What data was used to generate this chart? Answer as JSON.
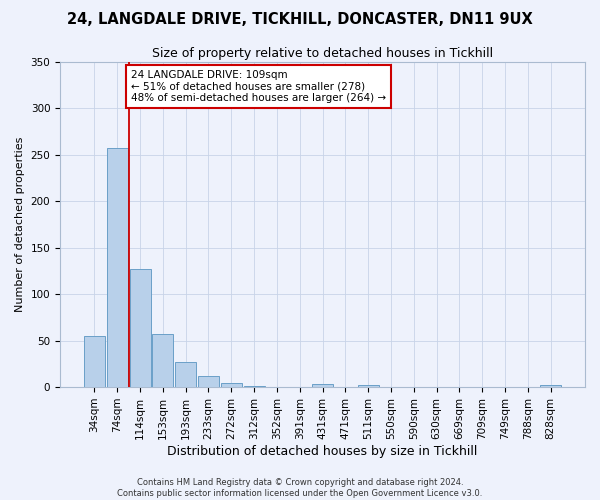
{
  "title": "24, LANGDALE DRIVE, TICKHILL, DONCASTER, DN11 9UX",
  "subtitle": "Size of property relative to detached houses in Tickhill",
  "xlabel": "Distribution of detached houses by size in Tickhill",
  "ylabel": "Number of detached properties",
  "bar_labels": [
    "34sqm",
    "74sqm",
    "114sqm",
    "153sqm",
    "193sqm",
    "233sqm",
    "272sqm",
    "312sqm",
    "352sqm",
    "391sqm",
    "431sqm",
    "471sqm",
    "511sqm",
    "550sqm",
    "590sqm",
    "630sqm",
    "669sqm",
    "709sqm",
    "749sqm",
    "788sqm",
    "828sqm"
  ],
  "bar_values": [
    55,
    257,
    127,
    57,
    27,
    12,
    4,
    1,
    0,
    0,
    3,
    0,
    2,
    0,
    0,
    0,
    0,
    0,
    0,
    0,
    2
  ],
  "bar_color": "#b8d0ea",
  "bar_edge_color": "#6aa0c8",
  "vline_x_index": 1,
  "vline_color": "#cc0000",
  "annotation_text": "24 LANGDALE DRIVE: 109sqm\n← 51% of detached houses are smaller (278)\n48% of semi-detached houses are larger (264) →",
  "annotation_box_color": "#ffffff",
  "annotation_box_edge": "#cc0000",
  "ylim": [
    0,
    350
  ],
  "yticks": [
    0,
    50,
    100,
    150,
    200,
    250,
    300,
    350
  ],
  "background_color": "#eef2fc",
  "footer": "Contains HM Land Registry data © Crown copyright and database right 2024.\nContains public sector information licensed under the Open Government Licence v3.0.",
  "title_fontsize": 10.5,
  "subtitle_fontsize": 9,
  "ylabel_fontsize": 8,
  "xlabel_fontsize": 9,
  "tick_fontsize": 7.5,
  "footer_fontsize": 6,
  "annotation_fontsize": 7.5
}
